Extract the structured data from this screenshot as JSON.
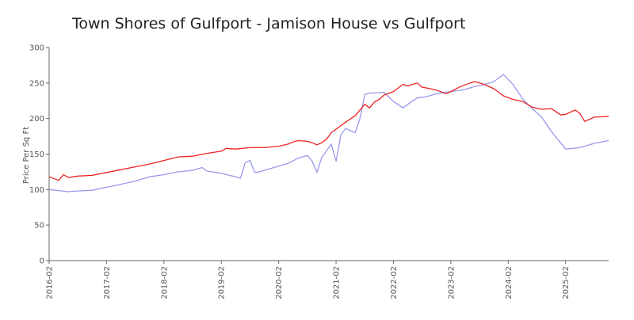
{
  "chart_data": {
    "type": "line",
    "title": "Town Shores of Gulfport - Jamison House vs Gulfport",
    "xlabel": "",
    "ylabel": "Price Per Sq Ft",
    "ylim": [
      0,
      300
    ],
    "yticks": [
      0,
      50,
      100,
      150,
      200,
      250,
      300
    ],
    "xrange": [
      "2016-02",
      "2025-11"
    ],
    "xtick_labels": [
      "2016-02",
      "2017-02",
      "2018-02",
      "2019-02",
      "2020-02",
      "2021-02",
      "2022-02",
      "2023-02",
      "2024-02",
      "2025-02"
    ],
    "grid": false,
    "legend": "none",
    "series": [
      {
        "color": "#ee2222",
        "x": [
          "2016-02",
          "2016-04",
          "2016-05",
          "2016-06",
          "2016-08",
          "2016-11",
          "2017-02",
          "2017-05",
          "2017-08",
          "2017-11",
          "2018-02",
          "2018-05",
          "2018-08",
          "2018-11",
          "2019-02",
          "2019-03",
          "2019-05",
          "2019-08",
          "2019-11",
          "2020-02",
          "2020-04",
          "2020-05",
          "2020-06",
          "2020-08",
          "2020-09",
          "2020-10",
          "2020-11",
          "2020-12",
          "2021-01",
          "2021-02",
          "2021-04",
          "2021-06",
          "2021-08",
          "2021-09",
          "2021-10",
          "2021-11",
          "2021-12",
          "2022-02",
          "2022-04",
          "2022-05",
          "2022-07",
          "2022-08",
          "2022-09",
          "2022-11",
          "2023-01",
          "2023-02",
          "2023-04",
          "2023-06",
          "2023-07",
          "2023-09",
          "2023-11",
          "2024-01",
          "2024-03",
          "2024-05",
          "2024-07",
          "2024-09",
          "2024-11",
          "2025-01",
          "2025-02",
          "2025-04",
          "2025-05",
          "2025-06",
          "2025-08",
          "2025-11"
        ],
        "y": [
          118,
          113,
          121,
          117,
          119,
          120,
          124,
          128,
          132,
          136,
          141,
          146,
          147,
          151,
          154,
          158,
          157,
          159,
          159,
          161,
          164,
          167,
          169,
          168,
          166,
          163,
          166,
          171,
          180,
          185,
          195,
          204,
          220,
          215,
          223,
          227,
          233,
          238,
          248,
          246,
          250,
          244,
          243,
          240,
          235,
          238,
          245,
          250,
          252,
          248,
          242,
          232,
          227,
          224,
          216,
          213,
          214,
          205,
          206,
          212,
          207,
          196,
          202,
          203
        ]
      },
      {
        "color": "#9999ee",
        "x": [
          "2016-02",
          "2016-06",
          "2016-08",
          "2016-11",
          "2017-01",
          "2017-04",
          "2017-08",
          "2017-11",
          "2018-02",
          "2018-05",
          "2018-08",
          "2018-10",
          "2018-11",
          "2019-02",
          "2019-05",
          "2019-06",
          "2019-07",
          "2019-08",
          "2019-09",
          "2019-10",
          "2019-11",
          "2020-01",
          "2020-04",
          "2020-06",
          "2020-08",
          "2020-09",
          "2020-10",
          "2020-11",
          "2021-01",
          "2021-02",
          "2021-03",
          "2021-04",
          "2021-06",
          "2021-07",
          "2021-08",
          "2021-09",
          "2021-10",
          "2021-12",
          "2022-02",
          "2022-04",
          "2022-06",
          "2022-07",
          "2022-09",
          "2022-11",
          "2023-02",
          "2023-05",
          "2023-07",
          "2023-09",
          "2023-11",
          "2024-01",
          "2024-03",
          "2024-05",
          "2024-07",
          "2024-09",
          "2024-11",
          "2025-02",
          "2025-05",
          "2025-08",
          "2025-11"
        ],
        "y": [
          100,
          97,
          98,
          99,
          102,
          106,
          112,
          118,
          121,
          125,
          127,
          131,
          126,
          123,
          118,
          116,
          138,
          141,
          124,
          125,
          127,
          131,
          137,
          144,
          148,
          140,
          124,
          145,
          164,
          140,
          177,
          186,
          180,
          200,
          234,
          236,
          236,
          237,
          224,
          215,
          225,
          229,
          231,
          235,
          238,
          241,
          245,
          248,
          252,
          262,
          248,
          228,
          214,
          202,
          182,
          157,
          159,
          165,
          169
        ]
      }
    ]
  }
}
